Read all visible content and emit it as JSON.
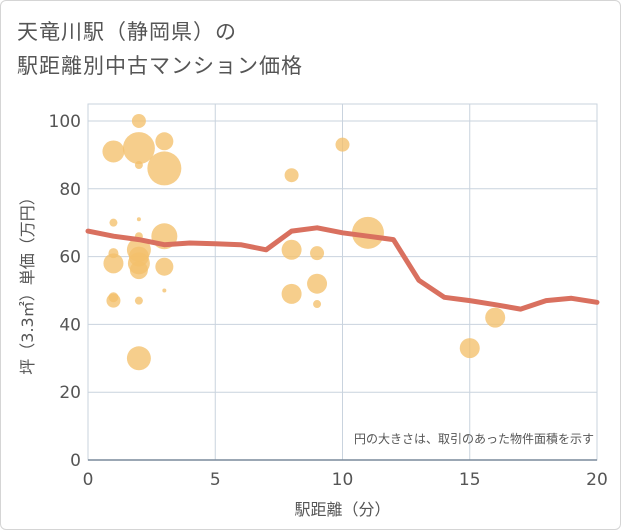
{
  "title_lines": [
    "天竜川駅（静岡県）の",
    "駅距離別中古マンション価格"
  ],
  "chart_data": {
    "type": "scatter",
    "title": "天竜川駅（静岡県）の駅距離別中古マンション価格",
    "xlabel": "駅距離（分）",
    "ylabel": "坪（3.3㎡）単価（万円）",
    "xlim": [
      0,
      20
    ],
    "ylim": [
      0,
      105
    ],
    "x_ticks": [
      "0",
      "5",
      "10",
      "15",
      "20"
    ],
    "y_ticks": [
      "0",
      "20",
      "40",
      "60",
      "80",
      "100"
    ],
    "grid": true,
    "note": "円の大きさは、取引のあった物件面積を示す",
    "colors": {
      "bubble": "#f3c06b",
      "line": "#d9705f",
      "grid": "#c9d3de"
    },
    "bubbles": [
      {
        "x": 1,
        "y": 91,
        "r": 11
      },
      {
        "x": 1,
        "y": 70,
        "r": 4
      },
      {
        "x": 1,
        "y": 61,
        "r": 5
      },
      {
        "x": 1,
        "y": 58,
        "r": 10
      },
      {
        "x": 1,
        "y": 48,
        "r": 5
      },
      {
        "x": 1,
        "y": 47,
        "r": 7
      },
      {
        "x": 2,
        "y": 100,
        "r": 7
      },
      {
        "x": 2,
        "y": 92,
        "r": 16
      },
      {
        "x": 2,
        "y": 87,
        "r": 4
      },
      {
        "x": 2,
        "y": 71,
        "r": 2
      },
      {
        "x": 2,
        "y": 66,
        "r": 4
      },
      {
        "x": 2,
        "y": 62,
        "r": 12
      },
      {
        "x": 2,
        "y": 60,
        "r": 10
      },
      {
        "x": 2,
        "y": 58,
        "r": 11
      },
      {
        "x": 2,
        "y": 56,
        "r": 9
      },
      {
        "x": 2,
        "y": 47,
        "r": 4
      },
      {
        "x": 2,
        "y": 30,
        "r": 12
      },
      {
        "x": 3,
        "y": 94,
        "r": 9
      },
      {
        "x": 3,
        "y": 86,
        "r": 17
      },
      {
        "x": 3,
        "y": 66,
        "r": 13
      },
      {
        "x": 3,
        "y": 57,
        "r": 9
      },
      {
        "x": 3,
        "y": 50,
        "r": 2
      },
      {
        "x": 8,
        "y": 84,
        "r": 7
      },
      {
        "x": 8,
        "y": 62,
        "r": 10
      },
      {
        "x": 8,
        "y": 49,
        "r": 10
      },
      {
        "x": 9,
        "y": 61,
        "r": 7
      },
      {
        "x": 9,
        "y": 52,
        "r": 10
      },
      {
        "x": 9,
        "y": 46,
        "r": 4
      },
      {
        "x": 10,
        "y": 93,
        "r": 7
      },
      {
        "x": 11,
        "y": 67,
        "r": 16
      },
      {
        "x": 15,
        "y": 33,
        "r": 10
      },
      {
        "x": 16,
        "y": 42,
        "r": 10
      }
    ],
    "line": {
      "x": [
        0,
        1,
        2,
        3,
        4,
        5,
        6,
        7,
        8,
        9,
        10,
        11,
        12,
        13,
        14,
        15,
        16,
        17,
        18,
        19,
        20
      ],
      "y": [
        67.5,
        66,
        65,
        63.5,
        64,
        63.8,
        63.5,
        62,
        67.5,
        68.5,
        67,
        66,
        65,
        53,
        48,
        47,
        45.8,
        44.5,
        47,
        47.7,
        46.5
      ]
    }
  }
}
